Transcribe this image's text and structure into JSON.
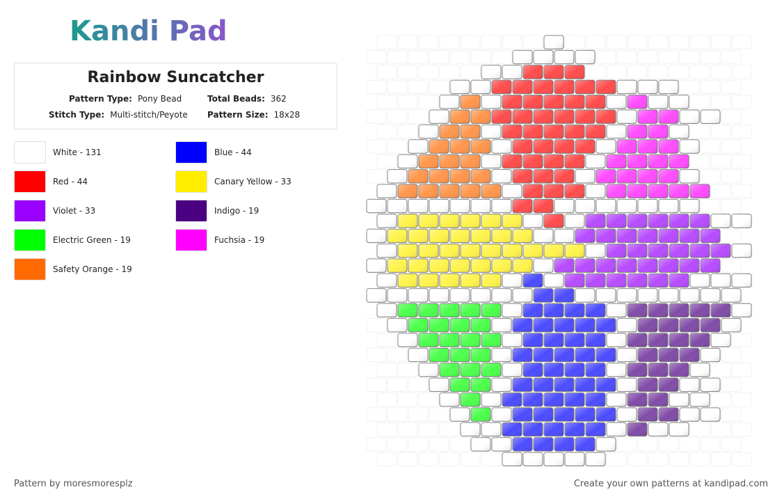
{
  "header": {
    "logo": "Kandi Pad",
    "title": "Rainbow Suncatcher",
    "fields": [
      {
        "label": "Pattern Type:",
        "value": "Pony Bead"
      },
      {
        "label": "Total Beads:",
        "value": "362"
      },
      {
        "label": "Stitch Type:",
        "value": "Multi-stitch/Peyote"
      },
      {
        "label": "Pattern Size:",
        "value": "18x28"
      }
    ]
  },
  "legend": [
    {
      "label": "White - 131",
      "color": "#ffffff"
    },
    {
      "label": "Red - 44",
      "color": "#ff0000"
    },
    {
      "label": "Violet - 33",
      "color": "#9900ff"
    },
    {
      "label": "Electric Green - 19",
      "color": "#00ff00"
    },
    {
      "label": "Safety Orange - 19",
      "color": "#ff6a00"
    },
    {
      "label": "Blue - 44",
      "color": "#0000ff"
    },
    {
      "label": "Canary Yellow - 33",
      "color": "#ffee00"
    },
    {
      "label": "Indigo - 19",
      "color": "#4b0082"
    },
    {
      "label": "Fuchsia - 19",
      "color": "#ff00ff"
    }
  ],
  "footer": {
    "left": "Pattern by moresmoresplz",
    "right": "Create your own patterns at kandipad.com"
  }
}
